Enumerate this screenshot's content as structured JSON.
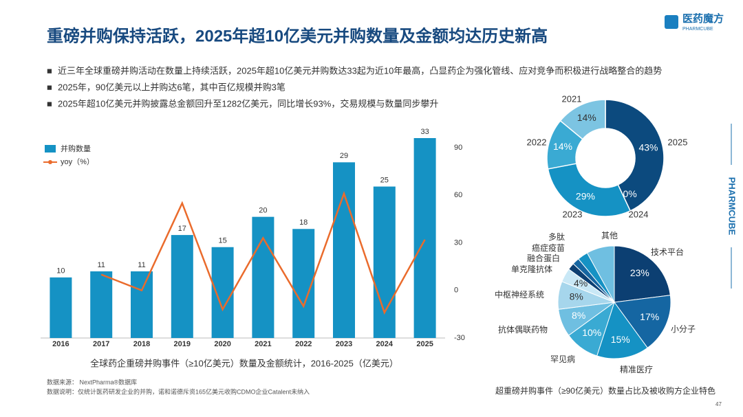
{
  "header": {
    "title": "重磅并购保持活跃，2025年超10亿美元并购数量及金额均达历史新高",
    "logo": "医药魔方",
    "logo_sub": "PHARMCUBE",
    "side_label": "PHARMCUBE"
  },
  "bullets": [
    "近三年全球重磅并购活动在数量上持续活跃，2025年超10亿美元并购数达33起为近10年最高，凸显药企为强化管线、应对竞争而积极进行战略整合的趋势",
    "2025年，90亿美元以上并购达6笔，其中百亿规模并购3笔",
    "2025年超10亿美元并购披露总金额回升至1282亿美元，同比增长93%，交易规模与数量同步攀升"
  ],
  "chart_data": [
    {
      "type": "bar",
      "caption": "全球药企重磅并购事件（≥10亿美元）数量及金额统计，2016-2025（亿美元）",
      "categories": [
        "2016",
        "2017",
        "2018",
        "2019",
        "2020",
        "2021",
        "2022",
        "2023",
        "2024",
        "2025"
      ],
      "series": [
        {
          "name": "并购数量",
          "color": "#1592c4",
          "values": [
            10,
            11,
            11,
            17,
            15,
            20,
            18,
            29,
            25,
            33
          ]
        },
        {
          "name": "yoy（%）",
          "type": "line",
          "axis": "y2",
          "color": "#ea6b2c",
          "values": [
            null,
            10,
            0,
            55,
            -12,
            33,
            -10,
            61,
            -14,
            32
          ]
        }
      ],
      "ylim": [
        0,
        33
      ],
      "y2lim": [
        -30,
        96
      ],
      "y2ticks": [
        -30,
        0,
        30,
        60,
        90
      ]
    },
    {
      "type": "donut",
      "categories": [
        "2025",
        "2024",
        "2023",
        "2022",
        "2021"
      ],
      "values": [
        43,
        0,
        29,
        14,
        14
      ],
      "value_labels": [
        "43%",
        "0%",
        "29%",
        "14%",
        "14%"
      ],
      "colors": [
        "#0c4a7e",
        "#136aa6",
        "#1592c4",
        "#3aaad3",
        "#7cc4e2"
      ]
    },
    {
      "type": "pie",
      "caption": "超重磅并购事件（≥90亿美元）数量占比及被收购方企业特色",
      "categories": [
        "技术平台",
        "小分子",
        "精准医疗",
        "罕见病",
        "抗体偶联药物",
        "中枢神经系统",
        "单克隆抗体",
        "融合蛋白",
        "癌症疫苗",
        "多肽",
        "其他"
      ],
      "values": [
        23,
        17,
        15,
        10,
        8,
        8,
        4,
        2,
        2,
        3,
        8
      ],
      "value_labels": [
        "23%",
        "17%",
        "15%",
        "10%",
        "8%",
        "8%",
        "4%",
        null,
        null,
        null,
        null
      ],
      "colors": [
        "#0c3f72",
        "#1566a2",
        "#1592c4",
        "#3aaad3",
        "#6fbfe1",
        "#a6d6ec",
        "#c9e8f6",
        "#0c3f72",
        "#1566a2",
        "#1592c4",
        "#6fbfe1"
      ]
    }
  ],
  "footer": {
    "source": "数据来源： NextPharma®数据库",
    "note": "数据说明：仅统计医药研发企业的并购，诺和诺德斥资165亿美元收购CDMO企业Catalent未纳入",
    "page": "47"
  }
}
